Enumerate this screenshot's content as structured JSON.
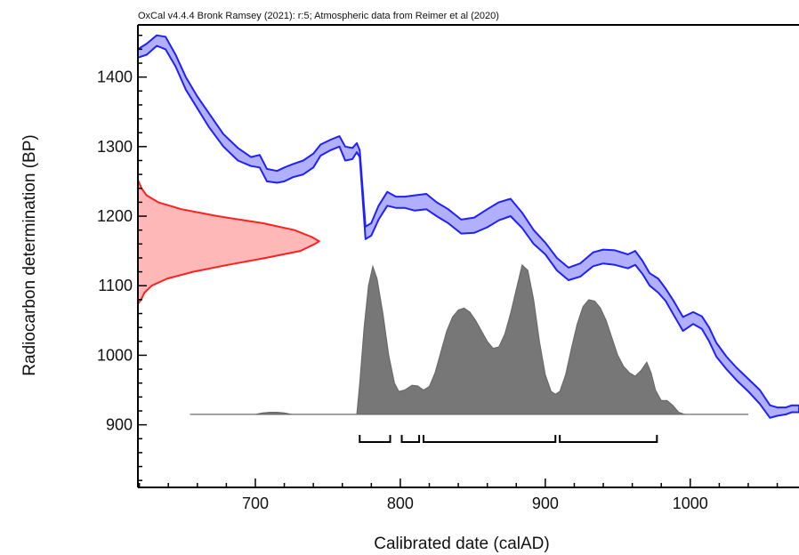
{
  "chart_data": {
    "type": "area",
    "title": "OxCal v4.4.4 Bronk Ramsey (2021): r:5; Atmospheric data from Reimer et al (2020)",
    "xlabel": "Calibrated date (calAD)",
    "ylabel": "Radiocarbon determination (BP)",
    "xlim": [
      619,
      1075
    ],
    "ylim": [
      810,
      1475
    ],
    "x_ticks": [
      700,
      800,
      900,
      1000
    ],
    "y_ticks": [
      900,
      1000,
      1100,
      1200,
      1300,
      1400
    ],
    "colors": {
      "calibration": "#2020ff",
      "calibration_fill": "#b0b0ff",
      "measurement": "#ff2020",
      "measurement_fill": "#ffb8b8",
      "posterior": "#777777"
    },
    "calibration_curve": {
      "x": [
        619,
        625,
        632,
        638,
        645,
        652,
        660,
        668,
        678,
        688,
        697,
        703,
        708,
        715,
        720,
        726,
        733,
        740,
        745,
        752,
        758,
        762,
        767,
        770,
        772,
        776,
        780,
        785,
        791,
        797,
        803,
        810,
        818,
        825,
        833,
        842,
        851,
        860,
        868,
        876,
        884,
        892,
        900,
        908,
        916,
        924,
        933,
        940,
        948,
        957,
        962,
        967,
        972,
        978,
        983,
        988,
        995,
        1002,
        1008,
        1013,
        1018,
        1025,
        1032,
        1040,
        1048,
        1055,
        1060,
        1066,
        1070,
        1075
      ],
      "upper": [
        1440,
        1448,
        1460,
        1458,
        1432,
        1400,
        1372,
        1348,
        1318,
        1298,
        1285,
        1288,
        1268,
        1265,
        1270,
        1275,
        1280,
        1290,
        1303,
        1310,
        1315,
        1300,
        1298,
        1305,
        1295,
        1185,
        1190,
        1215,
        1235,
        1228,
        1228,
        1230,
        1232,
        1220,
        1210,
        1195,
        1198,
        1210,
        1220,
        1225,
        1205,
        1180,
        1162,
        1140,
        1126,
        1132,
        1148,
        1152,
        1151,
        1145,
        1150,
        1136,
        1118,
        1110,
        1096,
        1080,
        1055,
        1062,
        1056,
        1040,
        1018,
        998,
        982,
        966,
        950,
        928,
        925,
        925,
        928,
        928
      ],
      "lower": [
        1428,
        1432,
        1445,
        1440,
        1415,
        1382,
        1355,
        1328,
        1300,
        1280,
        1272,
        1270,
        1250,
        1248,
        1250,
        1256,
        1260,
        1270,
        1287,
        1295,
        1300,
        1280,
        1282,
        1292,
        1285,
        1167,
        1172,
        1195,
        1215,
        1212,
        1212,
        1208,
        1210,
        1200,
        1190,
        1175,
        1176,
        1184,
        1194,
        1200,
        1183,
        1160,
        1145,
        1122,
        1108,
        1113,
        1128,
        1132,
        1130,
        1125,
        1130,
        1117,
        1100,
        1090,
        1078,
        1060,
        1035,
        1045,
        1038,
        1020,
        998,
        980,
        964,
        948,
        930,
        910,
        913,
        915,
        918,
        918
      ]
    },
    "measurement_distribution": {
      "baseline_x": 619,
      "y": [
        1074,
        1080,
        1090,
        1100,
        1110,
        1120,
        1130,
        1140,
        1150,
        1160,
        1164,
        1170,
        1180,
        1190,
        1200,
        1210,
        1220,
        1230,
        1240,
        1252
      ],
      "density": [
        0.0,
        2.2,
        4.5,
        9.5,
        20.0,
        38.0,
        62.0,
        88.0,
        112.0,
        122.0,
        125.0,
        120.0,
        108.0,
        86.0,
        55.0,
        30.0,
        14.0,
        6.0,
        2.5,
        0.0
      ]
    },
    "posterior_distribution": {
      "baseline_y": 915,
      "x_range": [
        655,
        1040
      ],
      "x": [
        655,
        700,
        705,
        710,
        715,
        720,
        725,
        735,
        770,
        772,
        775,
        778,
        781,
        784,
        788,
        792,
        796,
        799,
        803,
        808,
        812,
        816,
        820,
        824,
        828,
        832,
        836,
        840,
        844,
        848,
        852,
        856,
        860,
        864,
        868,
        872,
        876,
        880,
        884,
        888,
        892,
        896,
        900,
        904,
        907,
        910,
        914,
        918,
        922,
        926,
        930,
        934,
        938,
        942,
        946,
        950,
        954,
        958,
        962,
        966,
        970,
        973,
        976,
        980,
        984,
        988,
        992,
        996,
        1040
      ],
      "y": [
        915,
        915,
        917,
        918,
        918,
        917,
        915,
        915,
        915,
        960,
        1040,
        1100,
        1128,
        1110,
        1060,
        1000,
        960,
        948,
        950,
        957,
        956,
        950,
        955,
        975,
        1005,
        1035,
        1055,
        1065,
        1068,
        1062,
        1050,
        1035,
        1020,
        1010,
        1012,
        1030,
        1060,
        1095,
        1130,
        1122,
        1080,
        1020,
        972,
        948,
        944,
        948,
        972,
        1010,
        1045,
        1070,
        1080,
        1078,
        1068,
        1050,
        1025,
        1000,
        984,
        975,
        970,
        978,
        990,
        975,
        950,
        935,
        935,
        928,
        918,
        915,
        915
      ]
    },
    "range_brackets": [
      {
        "from": 772,
        "to": 793
      },
      {
        "from": 801,
        "to": 813
      },
      {
        "from": 816,
        "to": 907
      },
      {
        "from": 910,
        "to": 977
      }
    ]
  }
}
